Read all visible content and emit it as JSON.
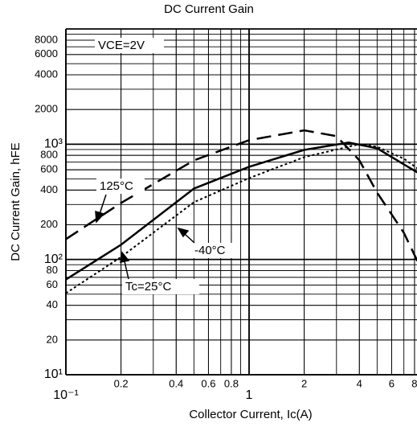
{
  "chart_data": {
    "type": "line",
    "title": "DC Current Gain",
    "xlabel": "Collector Current, Ic(A)",
    "ylabel": "DC Current Gain, hFE",
    "log_x": true,
    "log_y": true,
    "grid": true,
    "minor_grid": true,
    "xlim": [
      0.1,
      8.3
    ],
    "ylim": [
      10,
      10000
    ],
    "xticks": [
      {
        "value": 0.1,
        "label": "10⁻¹"
      },
      0.2,
      0.4,
      0.6,
      0.8,
      1,
      2,
      4,
      6,
      8
    ],
    "yticks": [
      {
        "value": 10,
        "label": "10¹"
      },
      20,
      40,
      60,
      80,
      {
        "value": 100,
        "label": "10²"
      },
      200,
      400,
      600,
      800,
      {
        "value": 1000,
        "label": "10³"
      },
      2000,
      4000,
      6000,
      8000
    ],
    "annotations": [
      "VCE=2V"
    ],
    "series": [
      {
        "name": "125°C",
        "color": "#000000",
        "style": "dashed",
        "x": [
          0.1,
          0.2,
          0.5,
          1,
          2,
          3,
          4,
          5,
          7,
          8.3
        ],
        "values": [
          150,
          309,
          725,
          1084,
          1320,
          1175,
          725,
          380,
          170,
          97
        ]
      },
      {
        "name": "Tc=25°C",
        "color": "#000000",
        "style": "solid",
        "x": [
          0.1,
          0.2,
          0.5,
          1,
          2,
          3.5,
          5,
          7,
          8.3
        ],
        "values": [
          67,
          134,
          412,
          637,
          893,
          1033,
          922,
          668,
          569
        ]
      },
      {
        "name": "-40°C",
        "color": "#000000",
        "style": "dotted",
        "x": [
          0.1,
          0.2,
          0.5,
          1,
          2,
          4,
          5,
          7,
          8.3
        ],
        "values": [
          51,
          105,
          314,
          508,
          773,
          1000,
          950,
          748,
          617
        ]
      }
    ]
  }
}
